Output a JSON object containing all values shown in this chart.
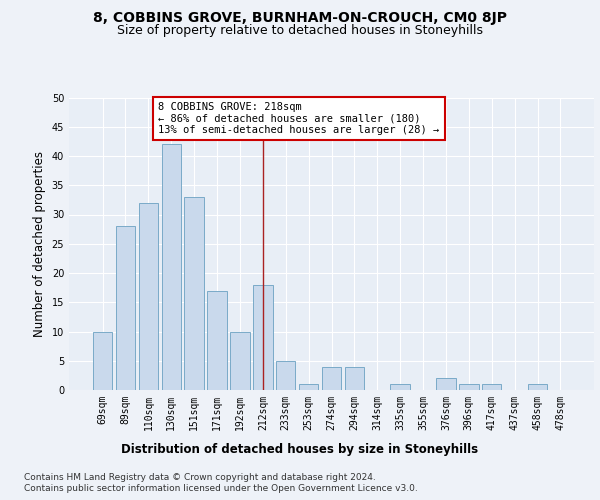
{
  "title": "8, COBBINS GROVE, BURNHAM-ON-CROUCH, CM0 8JP",
  "subtitle": "Size of property relative to detached houses in Stoneyhills",
  "xlabel": "Distribution of detached houses by size in Stoneyhills",
  "ylabel": "Number of detached properties",
  "categories": [
    "69sqm",
    "89sqm",
    "110sqm",
    "130sqm",
    "151sqm",
    "171sqm",
    "192sqm",
    "212sqm",
    "233sqm",
    "253sqm",
    "274sqm",
    "294sqm",
    "314sqm",
    "335sqm",
    "355sqm",
    "376sqm",
    "396sqm",
    "417sqm",
    "437sqm",
    "458sqm",
    "478sqm"
  ],
  "values": [
    10,
    28,
    32,
    42,
    33,
    17,
    10,
    18,
    5,
    1,
    4,
    4,
    0,
    1,
    0,
    2,
    1,
    1,
    0,
    1,
    0
  ],
  "bar_color": "#c9d9ec",
  "bar_edge_color": "#7aaac8",
  "highlight_index": 7,
  "highlight_line_color": "#aa2222",
  "ylim": [
    0,
    50
  ],
  "yticks": [
    0,
    5,
    10,
    15,
    20,
    25,
    30,
    35,
    40,
    45,
    50
  ],
  "annotation_box_text": "8 COBBINS GROVE: 218sqm\n← 86% of detached houses are smaller (180)\n13% of semi-detached houses are larger (28) →",
  "annotation_box_color": "#ffffff",
  "annotation_box_edge_color": "#cc0000",
  "footer_line1": "Contains HM Land Registry data © Crown copyright and database right 2024.",
  "footer_line2": "Contains public sector information licensed under the Open Government Licence v3.0.",
  "bg_color": "#eef2f8",
  "plot_bg_color": "#e8eef6",
  "grid_color": "#ffffff",
  "title_fontsize": 10,
  "subtitle_fontsize": 9,
  "label_fontsize": 8.5,
  "tick_fontsize": 7,
  "footer_fontsize": 6.5,
  "annotation_fontsize": 7.5
}
